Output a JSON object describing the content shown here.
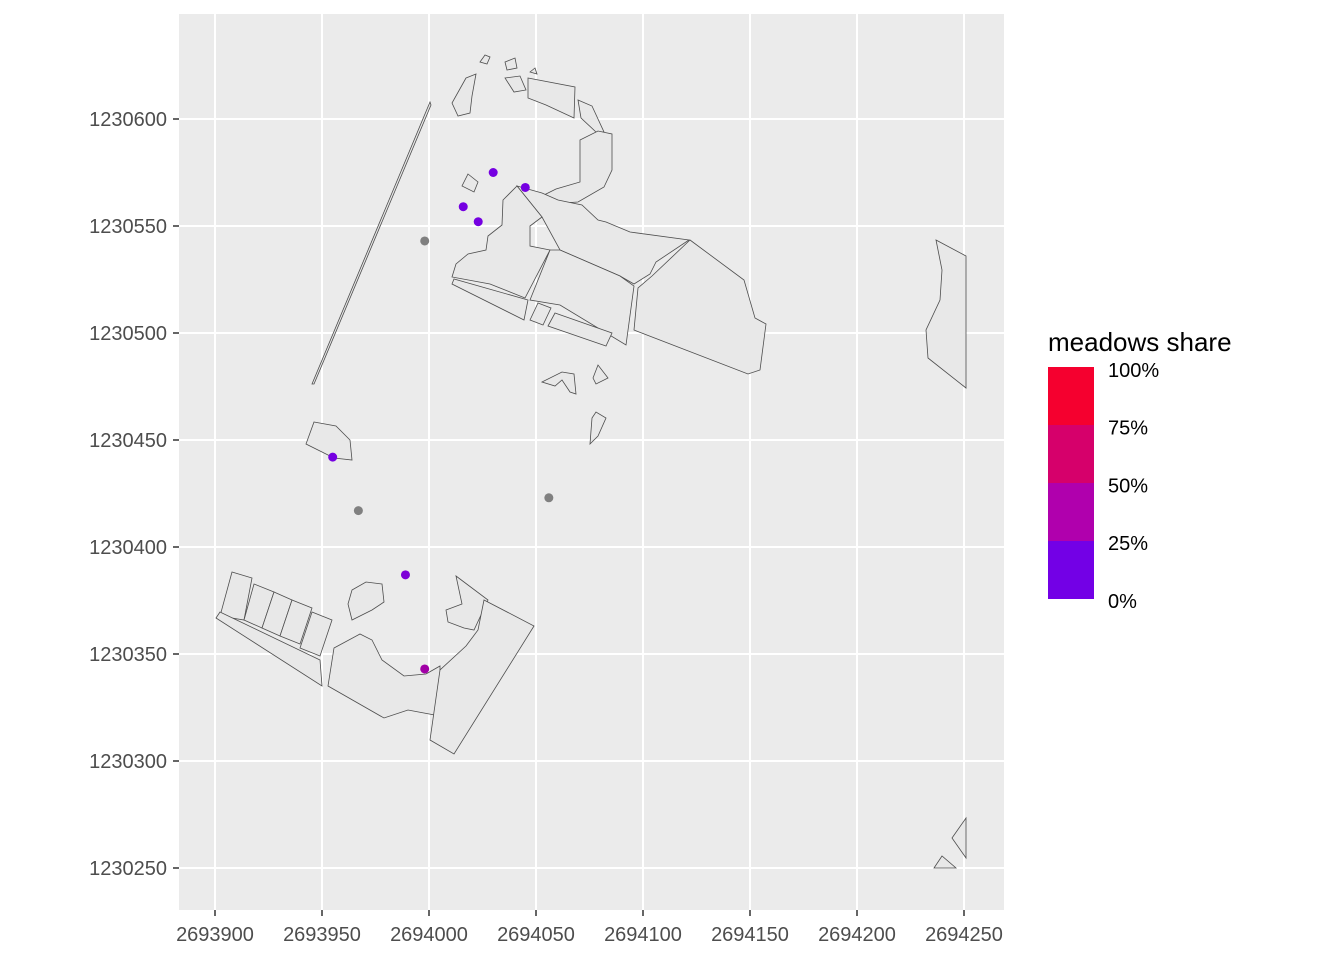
{
  "chart_data": {
    "type": "map",
    "x_ticks": [
      2693900,
      2693950,
      2694000,
      2694050,
      2694100,
      2694150,
      2694200,
      2694250
    ],
    "y_ticks": [
      1230250,
      1230300,
      1230350,
      1230400,
      1230450,
      1230500,
      1230550,
      1230600
    ],
    "x_range": [
      2693870,
      2694260
    ],
    "y_range": [
      1230232,
      1230650
    ],
    "grid": true,
    "panel_background": "#ebebeb",
    "polygon_fill": "#e8e8e8",
    "polygon_stroke": "#4d4d4d",
    "na_color": "#808080",
    "points": [
      {
        "x": 2694030,
        "y": 1230575,
        "meadows_share": 0.05
      },
      {
        "x": 2694045,
        "y": 1230568,
        "meadows_share": 0.05
      },
      {
        "x": 2694016,
        "y": 1230559,
        "meadows_share": 0.05
      },
      {
        "x": 2694023,
        "y": 1230552,
        "meadows_share": 0.05
      },
      {
        "x": 2693998,
        "y": 1230543,
        "meadows_share": null
      },
      {
        "x": 2693955,
        "y": 1230442,
        "meadows_share": 0.05
      },
      {
        "x": 2693967,
        "y": 1230417,
        "meadows_share": null
      },
      {
        "x": 2694056,
        "y": 1230423,
        "meadows_share": null
      },
      {
        "x": 2693989,
        "y": 1230387,
        "meadows_share": 0.1
      },
      {
        "x": 2693998,
        "y": 1230343,
        "meadows_share": 0.35
      }
    ],
    "legend": {
      "title": "meadows share",
      "position": "right",
      "breaks": [
        "100%",
        "75%",
        "50%",
        "25%",
        "0%"
      ],
      "colors": [
        "#f5002f",
        "#d6006b",
        "#b000ad",
        "#7300e6"
      ]
    }
  }
}
